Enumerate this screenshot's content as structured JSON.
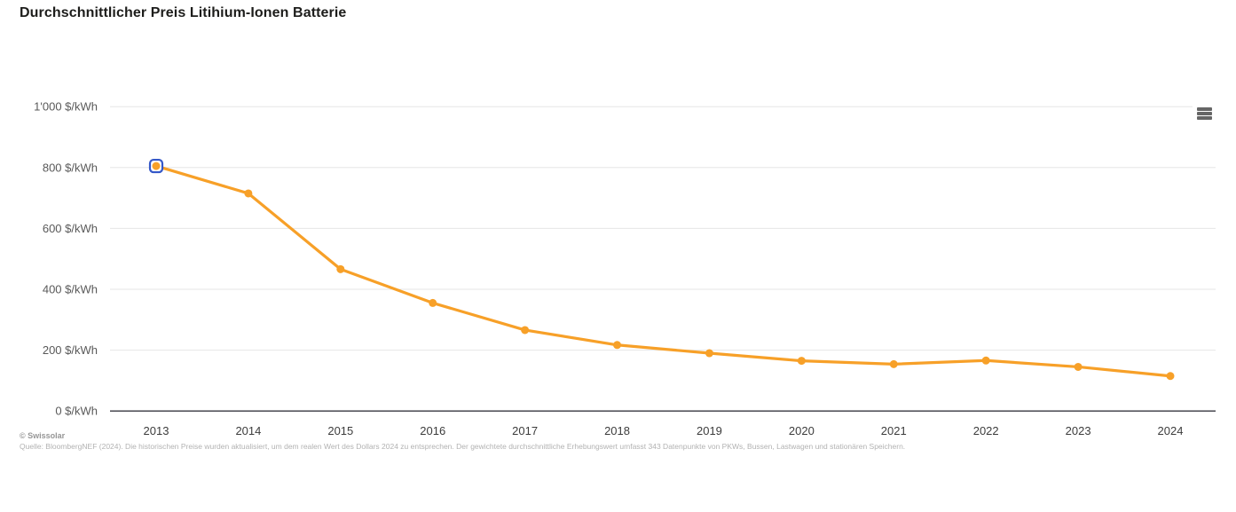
{
  "chart_data": {
    "type": "line",
    "title": "Durchschnittlicher Preis Litihium-Ionen Batterie",
    "categories": [
      "2013",
      "2014",
      "2015",
      "2016",
      "2017",
      "2018",
      "2019",
      "2020",
      "2021",
      "2022",
      "2023",
      "2024"
    ],
    "values": [
      805,
      715,
      466,
      355,
      266,
      217,
      190,
      165,
      154,
      166,
      145,
      115
    ],
    "unit": "$/kWh",
    "ylim": [
      0,
      1000
    ],
    "y_ticks": [
      0,
      200,
      400,
      600,
      800,
      1000
    ],
    "y_tick_labels": [
      "0 $/kWh",
      "200 $/kWh",
      "400 $/kWh",
      "600 $/kWh",
      "800 $/kWh",
      "1'000 $/kWh"
    ],
    "grid": "horizontal-only",
    "legend": "none",
    "colors": {
      "line": "#f7a028",
      "marker": "#f7a028",
      "focus_ring": "#3558c8",
      "gridline": "#e6e6e6",
      "axis_line": "#37373f",
      "y_label": "#595959",
      "x_label": "#3c3c3c"
    },
    "selected_point": {
      "category": "2013",
      "value": 805
    }
  },
  "menu": {
    "icon": "hamburger-icon",
    "tooltip": "Chart context menu"
  },
  "footer": {
    "copyright": "© Swissolar",
    "source": "Quelle: BloombergNEF (2024). Die historischen Preise wurden aktualisiert, um dem realen Wert des Dollars 2024 zu entsprechen. Der gewichtete durchschnittliche Erhebungswert umfasst 343 Datenpunkte von PKWs, Bussen, Lastwagen und stationären Speichern."
  }
}
